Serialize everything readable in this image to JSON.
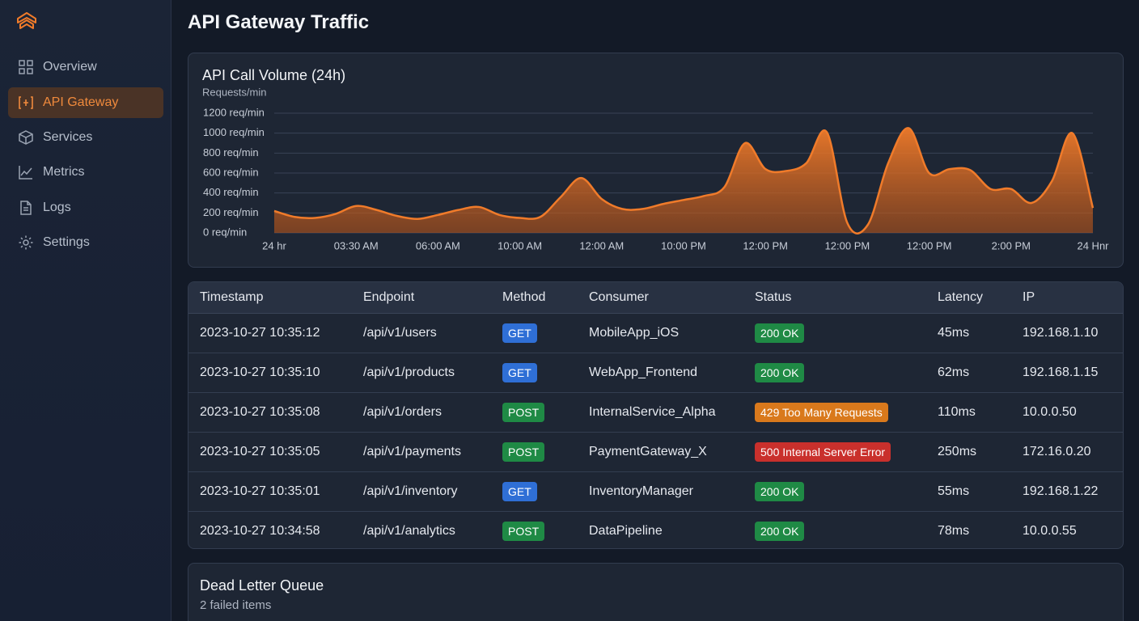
{
  "nav": {
    "items": [
      "Overview",
      "API Gateway",
      "Services",
      "Metrics",
      "Logs",
      "Settings"
    ]
  },
  "page": {
    "title": "API Gateway Traffic"
  },
  "chart_data": {
    "type": "area",
    "title": "API Call Volume (24h)",
    "y_label": "Requests/min",
    "color": "#f07b2a",
    "grid": true,
    "xlim": [
      0,
      10
    ],
    "xticks": [
      {
        "value": 0,
        "label": "24 hr"
      },
      {
        "value": 1,
        "label": "03:30 AM"
      },
      {
        "value": 2,
        "label": "06:00 AM"
      },
      {
        "value": 3,
        "label": "10:00 AM"
      },
      {
        "value": 4,
        "label": "12:00 AM"
      },
      {
        "value": 5,
        "label": "10:00 PM"
      },
      {
        "value": 6,
        "label": "12:00 PM"
      },
      {
        "value": 7,
        "label": "12:00 PM"
      },
      {
        "value": 8,
        "label": "12:00 PM"
      },
      {
        "value": 9,
        "label": "2:00 PM"
      },
      {
        "value": 10,
        "label": "24 Hnr"
      }
    ],
    "ylim": [
      0,
      1200
    ],
    "yticks": [
      {
        "value": 0,
        "label": "0 req/min"
      },
      {
        "value": 200,
        "label": "200 req/min"
      },
      {
        "value": 400,
        "label": "400 req/min"
      },
      {
        "value": 600,
        "label": "600 req/min"
      },
      {
        "value": 800,
        "label": "800 req/min"
      },
      {
        "value": 1000,
        "label": "1000 req/min"
      },
      {
        "value": 1200,
        "label": "1200 req/min"
      }
    ],
    "x": [
      0,
      0.25,
      0.5,
      0.75,
      1,
      1.25,
      1.5,
      1.75,
      2,
      2.25,
      2.5,
      2.75,
      3,
      3.25,
      3.5,
      3.75,
      4,
      4.25,
      4.5,
      4.75,
      5,
      5.25,
      5.5,
      5.75,
      6,
      6.25,
      6.5,
      6.75,
      7,
      7.25,
      7.5,
      7.75,
      8,
      8.25,
      8.5,
      8.75,
      9,
      9.25,
      9.5,
      9.75,
      10
    ],
    "values": [
      220,
      160,
      150,
      190,
      270,
      230,
      170,
      140,
      180,
      230,
      260,
      180,
      150,
      160,
      360,
      550,
      340,
      240,
      240,
      290,
      330,
      370,
      460,
      900,
      640,
      620,
      700,
      1010,
      100,
      80,
      700,
      1050,
      600,
      640,
      630,
      440,
      440,
      300,
      520,
      1000,
      250
    ]
  },
  "table": {
    "headers": [
      "Timestamp",
      "Endpoint",
      "Method",
      "Consumer",
      "Status",
      "Latency",
      "IP"
    ],
    "rows": [
      {
        "timestamp": "2023-10-27 10:35:12",
        "endpoint": "/api/v1/users",
        "method": "GET",
        "method_color": "#2f6fd6",
        "consumer": "MobileApp_iOS",
        "status": "200 OK",
        "status_color": "#1f8a45",
        "latency": "45ms",
        "ip": "192.168.1.10"
      },
      {
        "timestamp": "2023-10-27 10:35:10",
        "endpoint": "/api/v1/products",
        "method": "GET",
        "method_color": "#2f6fd6",
        "consumer": "WebApp_Frontend",
        "status": "200 OK",
        "status_color": "#1f8a45",
        "latency": "62ms",
        "ip": "192.168.1.15"
      },
      {
        "timestamp": "2023-10-27 10:35:08",
        "endpoint": "/api/v1/orders",
        "method": "POST",
        "method_color": "#1f8a45",
        "consumer": "InternalService_Alpha",
        "status": "429 Too Many Requests",
        "status_color": "#d9791c",
        "latency": "110ms",
        "ip": "10.0.0.50"
      },
      {
        "timestamp": "2023-10-27 10:35:05",
        "endpoint": "/api/v1/payments",
        "method": "POST",
        "method_color": "#1f8a45",
        "consumer": "PaymentGateway_X",
        "status": "500 Internal Server Error",
        "status_color": "#c9302c",
        "latency": "250ms",
        "ip": "172.16.0.20"
      },
      {
        "timestamp": "2023-10-27 10:35:01",
        "endpoint": "/api/v1/inventory",
        "method": "GET",
        "method_color": "#2f6fd6",
        "consumer": "InventoryManager",
        "status": "200 OK",
        "status_color": "#1f8a45",
        "latency": "55ms",
        "ip": "192.168.1.22"
      },
      {
        "timestamp": "2023-10-27 10:34:58",
        "endpoint": "/api/v1/analytics",
        "method": "POST",
        "method_color": "#1f8a45",
        "consumer": "DataPipeline",
        "status": "200 OK",
        "status_color": "#1f8a45",
        "latency": "78ms",
        "ip": "10.0.0.55"
      }
    ]
  },
  "dead_letter": {
    "title": "Dead Letter Queue",
    "subtitle": "2 failed items"
  }
}
